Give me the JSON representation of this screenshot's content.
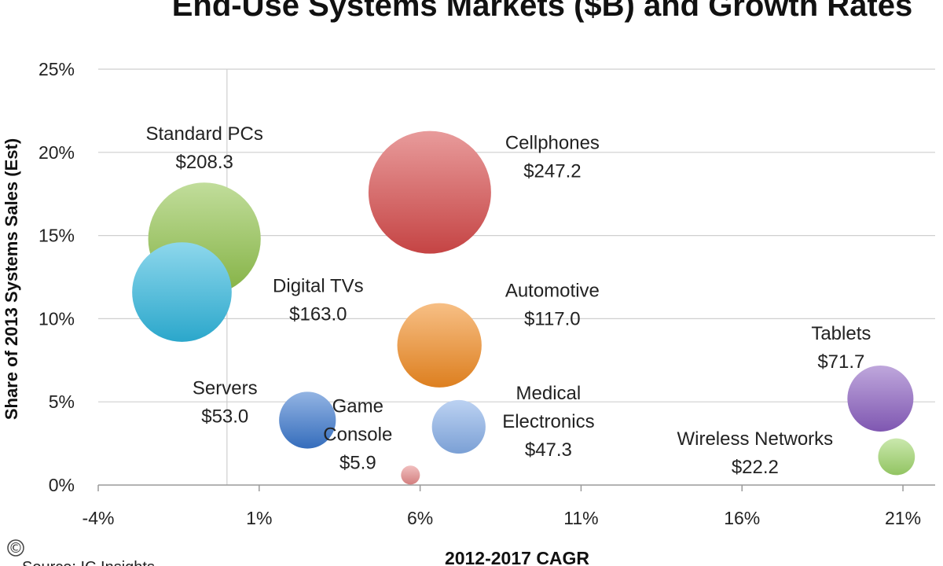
{
  "chart_data": {
    "type": "scatter",
    "title": "End-Use Systems Markets ($B) and Growth Rates",
    "xlabel": "2012-2017 CAGR",
    "ylabel": "Share of 2013 Systems Sales (Est)",
    "xlim": [
      -4,
      22
    ],
    "ylim": [
      0,
      25
    ],
    "x_ticks": [
      -4,
      1,
      6,
      11,
      16,
      21
    ],
    "x_tick_labels": [
      "-4%",
      "1%",
      "6%",
      "11%",
      "16%",
      "21%"
    ],
    "y_ticks": [
      0,
      5,
      10,
      15,
      20,
      25
    ],
    "y_tick_labels": [
      "0%",
      "5%",
      "10%",
      "15%",
      "20%",
      "25%"
    ],
    "grid": "horizontal",
    "reference_line_x": 0,
    "source": "Source: IC Insights",
    "copyright_symbol": "©",
    "series": [
      {
        "label_lines": [
          "Standard PCs",
          "$208.3"
        ],
        "x": -0.7,
        "y": 14.8,
        "size": 208.3,
        "color": "#8fc24a"
      },
      {
        "label_lines": [
          "Cellphones",
          "$247.2"
        ],
        "x": 6.3,
        "y": 17.6,
        "size": 247.2,
        "color": "#d64a4a"
      },
      {
        "label_lines": [
          "Digital TVs",
          "$163.0"
        ],
        "x": -1.4,
        "y": 11.6,
        "size": 163.0,
        "color": "#2fb6dd"
      },
      {
        "label_lines": [
          "Automotive",
          "$117.0"
        ],
        "x": 6.6,
        "y": 8.4,
        "size": 117.0,
        "color": "#f08a22"
      },
      {
        "label_lines": [
          "Tablets",
          "$71.7"
        ],
        "x": 20.3,
        "y": 5.2,
        "size": 71.7,
        "color": "#8a5fc0"
      },
      {
        "label_lines": [
          "Servers",
          "$53.0"
        ],
        "x": 2.5,
        "y": 3.9,
        "size": 53.0,
        "color": "#3a77cc"
      },
      {
        "label_lines": [
          "Medical",
          "Electronics",
          "$47.3"
        ],
        "x": 7.2,
        "y": 3.5,
        "size": 47.3,
        "color": "#86aee8"
      },
      {
        "label_lines": [
          "Wireless Networks",
          "$22.2"
        ],
        "x": 20.8,
        "y": 1.7,
        "size": 22.2,
        "color": "#9fd56a"
      },
      {
        "label_lines": [
          "Game",
          "Console",
          "$5.9"
        ],
        "x": 5.7,
        "y": 0.6,
        "size": 5.9,
        "color": "#e58a8a"
      }
    ]
  }
}
